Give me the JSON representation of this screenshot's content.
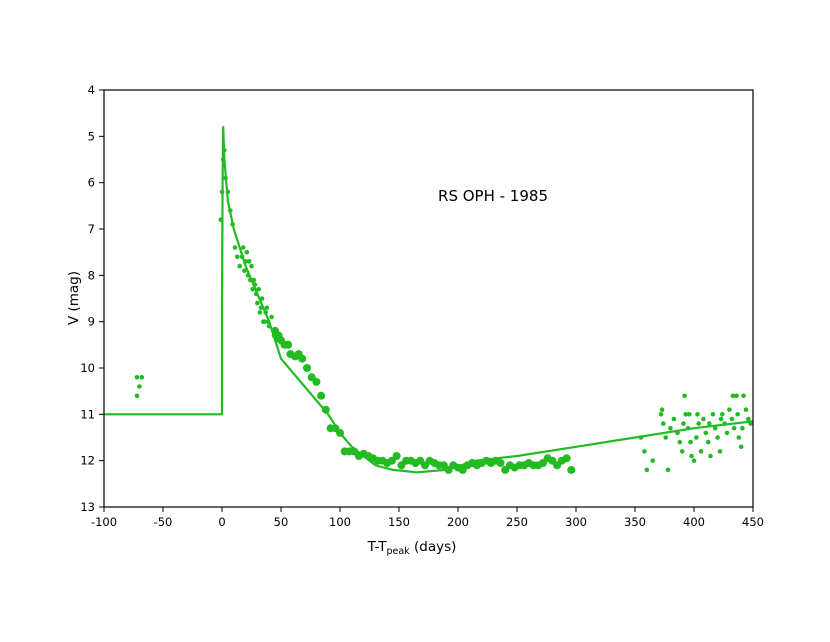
{
  "chart_data": {
    "type": "scatter",
    "title": "",
    "annotation": "RS OPH - 1985",
    "xlabel": {
      "main": "T-T",
      "sub": "peak",
      "suffix": " (days)"
    },
    "ylabel": "V (mag)",
    "xlim": [
      -100,
      450
    ],
    "ylim": [
      4,
      13
    ],
    "y_inverted": true,
    "x_ticks": [
      -100,
      -50,
      0,
      50,
      100,
      150,
      200,
      250,
      300,
      350,
      400,
      450
    ],
    "y_ticks": [
      4,
      5,
      6,
      7,
      8,
      9,
      10,
      11,
      12,
      13
    ],
    "grid": false,
    "legend": "none",
    "colors": {
      "series": "#22bb22",
      "frame": "#000000"
    },
    "series": [
      {
        "kind": "line",
        "points": [
          [
            -100,
            11.0
          ],
          [
            0,
            11.0
          ],
          [
            0,
            8.6
          ],
          [
            0.5,
            6.0
          ],
          [
            1,
            4.8
          ],
          [
            2,
            5.5
          ],
          [
            5,
            6.4
          ],
          [
            10,
            7.0
          ],
          [
            20,
            7.8
          ],
          [
            30,
            8.4
          ],
          [
            40,
            9.0
          ],
          [
            50,
            9.8
          ],
          [
            60,
            10.1
          ],
          [
            70,
            10.4
          ],
          [
            80,
            10.7
          ],
          [
            90,
            11.0
          ],
          [
            100,
            11.4
          ],
          [
            110,
            11.7
          ],
          [
            120,
            11.9
          ],
          [
            130,
            12.1
          ],
          [
            145,
            12.2
          ],
          [
            165,
            12.25
          ],
          [
            190,
            12.2
          ],
          [
            215,
            12.0
          ],
          [
            250,
            11.9
          ],
          [
            300,
            11.7
          ],
          [
            350,
            11.5
          ],
          [
            400,
            11.3
          ],
          [
            450,
            11.15
          ]
        ]
      },
      {
        "kind": "points_small",
        "points": [
          [
            -72,
            10.2
          ],
          [
            -68,
            10.2
          ],
          [
            -70,
            10.4
          ],
          [
            -72,
            10.6
          ],
          [
            -1,
            6.8
          ],
          [
            0,
            6.2
          ],
          [
            1,
            5.5
          ],
          [
            2,
            5.3
          ],
          [
            3,
            5.9
          ],
          [
            5,
            6.2
          ],
          [
            7,
            6.6
          ],
          [
            9,
            6.9
          ],
          [
            11,
            7.4
          ],
          [
            13,
            7.6
          ],
          [
            15,
            7.8
          ],
          [
            18,
            7.4
          ],
          [
            20,
            7.7
          ],
          [
            22,
            8.0
          ],
          [
            24,
            8.1
          ],
          [
            26,
            8.3
          ],
          [
            28,
            8.2
          ],
          [
            30,
            8.6
          ],
          [
            32,
            8.8
          ],
          [
            34,
            8.5
          ],
          [
            36,
            9.0
          ],
          [
            38,
            8.7
          ],
          [
            40,
            9.1
          ],
          [
            42,
            8.9
          ],
          [
            44,
            9.3
          ],
          [
            46,
            9.4
          ],
          [
            17,
            7.6
          ],
          [
            19,
            7.9
          ],
          [
            21,
            7.5
          ],
          [
            23,
            7.7
          ],
          [
            25,
            7.8
          ],
          [
            27,
            8.1
          ],
          [
            29,
            8.4
          ],
          [
            31,
            8.3
          ],
          [
            33,
            8.7
          ],
          [
            35,
            9.0
          ],
          [
            37,
            8.8
          ],
          [
            39,
            9.0
          ],
          [
            355,
            11.5
          ],
          [
            358,
            11.8
          ],
          [
            360,
            12.2
          ],
          [
            365,
            12.0
          ],
          [
            372,
            11.0
          ],
          [
            374,
            11.2
          ],
          [
            376,
            11.5
          ],
          [
            378,
            12.2
          ],
          [
            380,
            11.3
          ],
          [
            383,
            11.1
          ],
          [
            386,
            11.4
          ],
          [
            388,
            11.6
          ],
          [
            390,
            11.8
          ],
          [
            392,
            10.6
          ],
          [
            393,
            11.0
          ],
          [
            395,
            11.3
          ],
          [
            397,
            11.6
          ],
          [
            398,
            11.9
          ],
          [
            400,
            12.0
          ],
          [
            402,
            11.5
          ],
          [
            404,
            11.2
          ],
          [
            406,
            11.8
          ],
          [
            408,
            11.1
          ],
          [
            410,
            11.4
          ],
          [
            412,
            11.6
          ],
          [
            414,
            11.9
          ],
          [
            416,
            11.0
          ],
          [
            418,
            11.3
          ],
          [
            420,
            11.5
          ],
          [
            422,
            11.8
          ],
          [
            424,
            11.0
          ],
          [
            426,
            11.2
          ],
          [
            428,
            11.4
          ],
          [
            430,
            10.9
          ],
          [
            432,
            11.1
          ],
          [
            434,
            11.3
          ],
          [
            436,
            10.6
          ],
          [
            438,
            11.5
          ],
          [
            440,
            11.7
          ],
          [
            442,
            10.6
          ],
          [
            444,
            10.9
          ],
          [
            446,
            11.1
          ],
          [
            448,
            11.2
          ],
          [
            373,
            10.9
          ],
          [
            391,
            11.2
          ],
          [
            396,
            11.0
          ],
          [
            403,
            11.0
          ],
          [
            413,
            11.2
          ],
          [
            423,
            11.1
          ],
          [
            433,
            10.6
          ],
          [
            437,
            11.0
          ],
          [
            441,
            11.3
          ]
        ]
      },
      {
        "kind": "points_large",
        "points": [
          [
            45,
            9.2
          ],
          [
            48,
            9.3
          ],
          [
            50,
            9.4
          ],
          [
            53,
            9.5
          ],
          [
            56,
            9.5
          ],
          [
            58,
            9.7
          ],
          [
            62,
            9.75
          ],
          [
            65,
            9.7
          ],
          [
            68,
            9.8
          ],
          [
            72,
            10.0
          ],
          [
            76,
            10.2
          ],
          [
            80,
            10.3
          ],
          [
            84,
            10.6
          ],
          [
            88,
            10.9
          ],
          [
            92,
            11.3
          ],
          [
            96,
            11.3
          ],
          [
            100,
            11.4
          ],
          [
            104,
            11.8
          ],
          [
            108,
            11.8
          ],
          [
            112,
            11.8
          ],
          [
            116,
            11.9
          ],
          [
            120,
            11.85
          ],
          [
            124,
            11.9
          ],
          [
            128,
            11.95
          ],
          [
            132,
            12.0
          ],
          [
            136,
            12.0
          ],
          [
            140,
            12.05
          ],
          [
            144,
            12.0
          ],
          [
            148,
            11.9
          ],
          [
            152,
            12.1
          ],
          [
            156,
            12.0
          ],
          [
            160,
            12.0
          ],
          [
            164,
            12.05
          ],
          [
            168,
            12.0
          ],
          [
            172,
            12.1
          ],
          [
            176,
            12.0
          ],
          [
            180,
            12.05
          ],
          [
            184,
            12.1
          ],
          [
            188,
            12.1
          ],
          [
            192,
            12.2
          ],
          [
            196,
            12.1
          ],
          [
            200,
            12.15
          ],
          [
            204,
            12.2
          ],
          [
            208,
            12.1
          ],
          [
            212,
            12.05
          ],
          [
            216,
            12.1
          ],
          [
            220,
            12.05
          ],
          [
            224,
            12.0
          ],
          [
            228,
            12.05
          ],
          [
            232,
            12.0
          ],
          [
            236,
            12.05
          ],
          [
            240,
            12.2
          ],
          [
            244,
            12.1
          ],
          [
            248,
            12.15
          ],
          [
            252,
            12.1
          ],
          [
            256,
            12.1
          ],
          [
            260,
            12.05
          ],
          [
            264,
            12.1
          ],
          [
            268,
            12.1
          ],
          [
            272,
            12.05
          ],
          [
            276,
            11.95
          ],
          [
            280,
            12.0
          ],
          [
            284,
            12.1
          ],
          [
            288,
            12.0
          ],
          [
            292,
            11.95
          ],
          [
            296,
            12.2
          ]
        ]
      }
    ]
  }
}
